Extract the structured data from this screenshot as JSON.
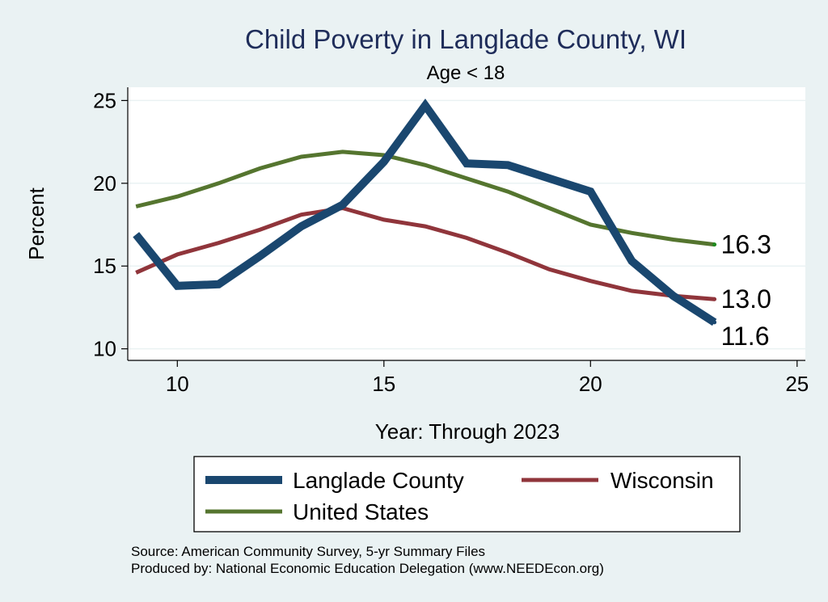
{
  "chart_data": {
    "type": "line",
    "title": "Child Poverty in Langlade County, WI",
    "subtitle": "Age < 18",
    "xlabel": "Year: Through 2023",
    "ylabel": "Percent",
    "xlim": [
      8.8,
      25.2
    ],
    "ylim": [
      9.3,
      25.8
    ],
    "xticks": [
      10,
      15,
      20,
      25
    ],
    "yticks": [
      10,
      15,
      20,
      25
    ],
    "grid": true,
    "x": [
      9,
      10,
      11,
      12,
      13,
      14,
      15,
      16,
      17,
      18,
      19,
      20,
      21,
      22,
      23
    ],
    "series": [
      {
        "name": "Langlade County",
        "color": "#1A476F",
        "values": [
          16.9,
          13.8,
          13.9,
          15.6,
          17.4,
          18.7,
          21.3,
          24.7,
          21.2,
          21.1,
          20.3,
          19.5,
          15.3,
          13.2,
          11.6
        ],
        "end_label": "11.6"
      },
      {
        "name": "Wisconsin",
        "color": "#90353B",
        "values": [
          14.6,
          15.7,
          16.4,
          17.2,
          18.1,
          18.5,
          17.8,
          17.4,
          16.7,
          15.8,
          14.8,
          14.1,
          13.5,
          13.2,
          13.0
        ],
        "end_label": "13.0"
      },
      {
        "name": "United States",
        "color": "#55752F",
        "values": [
          18.6,
          19.2,
          20.0,
          20.9,
          21.6,
          21.9,
          21.7,
          21.1,
          20.3,
          19.5,
          18.5,
          17.5,
          17.0,
          16.6,
          16.3
        ],
        "end_label": "16.3"
      }
    ],
    "legend_position": "bottom"
  },
  "notes": {
    "source": "Source: American Community Survey, 5-yr Summary Files",
    "produced": "Produced by: National Economic Education Delegation (www.NEEDEcon.org)"
  }
}
